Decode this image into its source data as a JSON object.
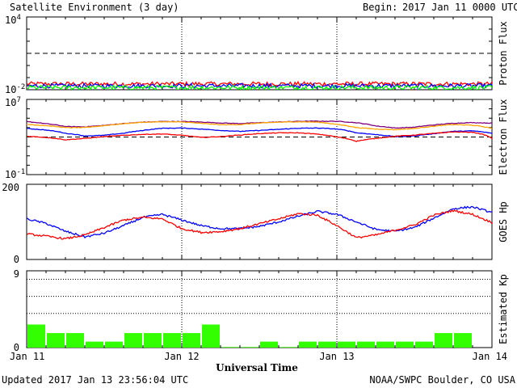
{
  "header": {
    "title": "Satellite Environment (3 day)",
    "begin_label": "Begin:",
    "begin_value": "2017 Jan 11 0000 UTC"
  },
  "footer": {
    "updated": "Updated 2017 Jan 13 23:56:04 UTC",
    "credit": "NOAA/SWPC Boulder, CO USA"
  },
  "colors": {
    "red": "#ff0000",
    "blue": "#0000ff",
    "green": "#00ff00",
    "orange": "#ffa500",
    "purple": "#800080",
    "kp_bar": "#33ff00",
    "axis": "#000000"
  },
  "chart_data": [
    {
      "id": "proton",
      "type": "line",
      "ylabel": "Proton Flux",
      "yscale": "log",
      "ylim": [
        0.01,
        10000
      ],
      "tick_labels": [
        {
          "value": 10000,
          "base": "10",
          "exp": "4"
        },
        {
          "value": 0.01,
          "base": "10",
          "exp": "-2"
        }
      ],
      "threshold": 10,
      "series": [
        {
          "color": "red",
          "level": 0.03
        },
        {
          "color": "blue",
          "level": 0.021
        },
        {
          "color": "green",
          "level": 0.015
        }
      ]
    },
    {
      "id": "electron",
      "type": "line",
      "ylabel": "Electron Flux",
      "yscale": "log",
      "ylim": [
        0.1,
        10000000
      ],
      "tick_labels": [
        {
          "value": 10000000,
          "base": "10",
          "exp": "7"
        },
        {
          "value": 0.1,
          "base": "10",
          "exp": "-1"
        }
      ],
      "threshold": 1000,
      "series": [
        {
          "color": "purple",
          "x": [
            0,
            3,
            6,
            9,
            12,
            15,
            18,
            21,
            24,
            27,
            30,
            33,
            36,
            39,
            42,
            45,
            48,
            51,
            54,
            57,
            60,
            63,
            66,
            69,
            72
          ],
          "y": [
            43000,
            26000,
            13000,
            12000,
            17000,
            27000,
            38000,
            45000,
            45000,
            39000,
            31000,
            27000,
            33000,
            40000,
            46000,
            48000,
            47000,
            33000,
            15000,
            9000,
            11000,
            19000,
            29000,
            34000,
            30000
          ]
        },
        {
          "color": "orange",
          "x": [
            0,
            3,
            6,
            9,
            12,
            15,
            18,
            21,
            24,
            27,
            30,
            33,
            36,
            39,
            42,
            45,
            48,
            51,
            54,
            57,
            60,
            63,
            66,
            69,
            72
          ],
          "y": [
            22000,
            16000,
            10000,
            10000,
            16000,
            26000,
            37000,
            42000,
            40000,
            28000,
            20000,
            21000,
            30000,
            38000,
            42000,
            38000,
            22000,
            10000,
            7000,
            6000,
            8000,
            14000,
            21000,
            18000,
            8000
          ]
        },
        {
          "color": "blue",
          "x": [
            0,
            3,
            6,
            9,
            12,
            15,
            18,
            21,
            24,
            27,
            30,
            33,
            36,
            39,
            42,
            45,
            48,
            51,
            54,
            57,
            60,
            63,
            66,
            69,
            72
          ],
          "y": [
            8000,
            5500,
            2500,
            1300,
            1500,
            2500,
            5000,
            8500,
            9000,
            7000,
            5000,
            4000,
            5000,
            6500,
            8500,
            9000,
            7000,
            2800,
            1800,
            1100,
            1300,
            2200,
            4000,
            4500,
            2500
          ]
        },
        {
          "color": "red",
          "x": [
            0,
            3,
            6,
            9,
            12,
            15,
            18,
            21,
            24,
            27,
            30,
            33,
            36,
            39,
            42,
            45,
            48,
            51,
            54,
            57,
            60,
            63,
            66,
            69,
            72
          ],
          "y": [
            1200,
            900,
            500,
            700,
            1100,
            1500,
            1900,
            2100,
            1500,
            900,
            1100,
            1600,
            2300,
            2800,
            2800,
            2000,
            1000,
            350,
            700,
            1200,
            1600,
            2400,
            3500,
            3200,
            700
          ]
        }
      ]
    },
    {
      "id": "goes_hp",
      "type": "line",
      "ylabel": "GOES Hp",
      "ylim": [
        0,
        200
      ],
      "tick_labels": [
        "200",
        "0"
      ],
      "series": [
        {
          "color": "blue",
          "x": [
            0,
            3,
            6,
            9,
            12,
            15,
            18,
            21,
            24,
            27,
            30,
            33,
            36,
            39,
            42,
            45,
            48,
            51,
            54,
            57,
            60,
            63,
            66,
            69,
            72
          ],
          "y": [
            108,
            96,
            75,
            60,
            70,
            90,
            112,
            120,
            105,
            90,
            82,
            82,
            88,
            100,
            115,
            128,
            120,
            100,
            80,
            75,
            85,
            110,
            135,
            140,
            125
          ]
        },
        {
          "color": "red",
          "x": [
            0,
            3,
            6,
            9,
            12,
            15,
            18,
            21,
            24,
            27,
            30,
            33,
            36,
            39,
            42,
            45,
            48,
            51,
            54,
            57,
            60,
            63,
            66,
            69,
            72
          ],
          "y": [
            68,
            62,
            55,
            65,
            85,
            105,
            112,
            108,
            82,
            72,
            74,
            82,
            95,
            108,
            122,
            118,
            90,
            58,
            65,
            78,
            92,
            118,
            130,
            120,
            98
          ]
        }
      ]
    },
    {
      "id": "kp",
      "type": "bar",
      "ylabel": "Estimated Kp",
      "ylim": [
        0,
        9
      ],
      "tick_labels": [
        "9",
        "0"
      ],
      "gridlines": [
        4,
        6,
        8
      ],
      "bar_width_hours": 3,
      "values": [
        2.7,
        1.7,
        1.7,
        0.7,
        0.7,
        1.7,
        1.7,
        1.7,
        1.7,
        2.7,
        0.07,
        0.07,
        0.7,
        0.07,
        0.7,
        0.7,
        0.7,
        0.7,
        0.7,
        0.7,
        0.7,
        1.7,
        1.7,
        0
      ]
    }
  ],
  "xaxis": {
    "label": "Universal Time",
    "ticks": [
      {
        "hour": 0,
        "label": "Jan 11"
      },
      {
        "hour": 24,
        "label": "Jan 12"
      },
      {
        "hour": 48,
        "label": "Jan 13"
      },
      {
        "hour": 72,
        "label": "Jan 14"
      }
    ],
    "range_hours": [
      0,
      72
    ]
  }
}
